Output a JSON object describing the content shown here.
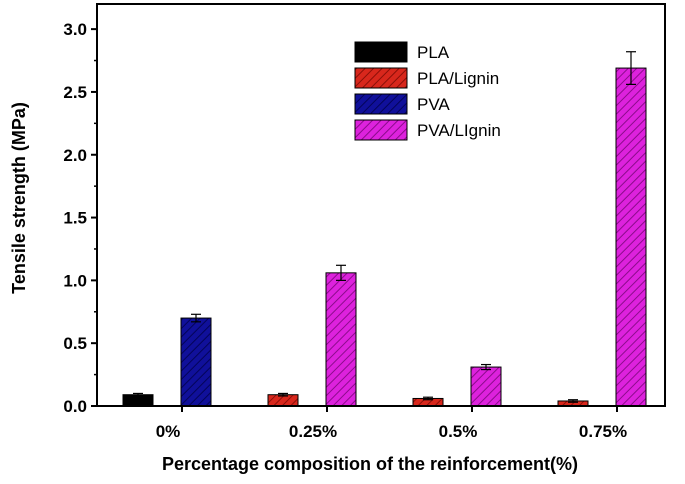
{
  "chart_data": {
    "type": "bar",
    "title": "",
    "xlabel": "Percentage composition of the reinforcement(%)",
    "ylabel": "Tensile strength (MPa)",
    "categories": [
      "0%",
      "0.25%",
      "0.5%",
      "0.75%"
    ],
    "ylim": [
      0,
      3.2
    ],
    "yticks": [
      "0.0",
      "0.5",
      "1.0",
      "1.5",
      "2.0",
      "2.5",
      "3.0"
    ],
    "grid": false,
    "legend_position": "top-right",
    "series": [
      {
        "name": "PLA",
        "color": "#000000",
        "pattern": "solid",
        "values": [
          0.09,
          null,
          null,
          null
        ],
        "errors": [
          0.01,
          null,
          null,
          null
        ]
      },
      {
        "name": "PLA/Lignin",
        "color": "#d8271c",
        "pattern": "hatched",
        "values": [
          null,
          0.09,
          0.06,
          0.04
        ],
        "errors": [
          null,
          0.01,
          0.01,
          0.01
        ]
      },
      {
        "name": "PVA",
        "color": "#10109a",
        "pattern": "hatched",
        "values": [
          0.7,
          null,
          null,
          null
        ],
        "errors": [
          0.03,
          null,
          null,
          null
        ]
      },
      {
        "name": "PVA/LIgnin",
        "color": "#dd22dd",
        "pattern": "hatched",
        "values": [
          null,
          1.06,
          0.31,
          2.69
        ],
        "errors": [
          null,
          0.06,
          0.02,
          0.13
        ]
      }
    ]
  }
}
